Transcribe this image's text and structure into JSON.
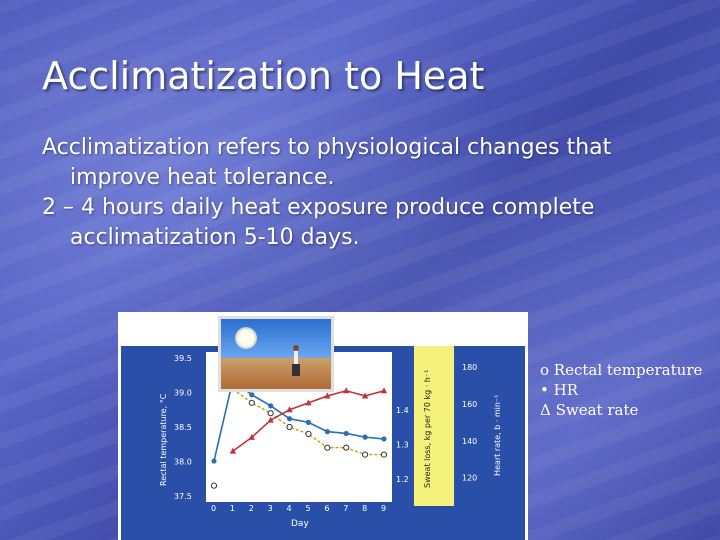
{
  "slide": {
    "title": "Acclimatization to Heat",
    "bullets": [
      "Acclimatization refers to physiological changes that improve heat tolerance.",
      "2 – 4 hours daily heat exposure produce complete acclimatization 5-10 days."
    ]
  },
  "legend": {
    "rectal": "o Rectal temperature",
    "hr": "• HR",
    "sweat": "Δ Sweat rate"
  },
  "chart_data": {
    "type": "line",
    "xlabel": "Day",
    "x": [
      0,
      1,
      2,
      3,
      4,
      5,
      6,
      7,
      8,
      9
    ],
    "x_ticks": [
      "0",
      "1",
      "2",
      "3",
      "4",
      "5",
      "6",
      "7",
      "8",
      "9"
    ],
    "axes": {
      "rectal": {
        "label": "Rectal temperature, °C",
        "range": [
          37.5,
          39.5
        ],
        "ticks": [
          "37.5",
          "38.0",
          "38.5",
          "39.0",
          "39.5"
        ]
      },
      "sweat": {
        "label": "Sweat loss, kg per 70 kg · h⁻¹",
        "range": [
          1.15,
          1.55
        ],
        "ticks": [
          "1.2",
          "1.3",
          "1.4"
        ]
      },
      "hr": {
        "label": "Heart rate, b · min⁻¹",
        "range": [
          110,
          185
        ],
        "ticks": [
          "120",
          "140",
          "160",
          "180"
        ]
      }
    },
    "series": [
      {
        "key": "rectal",
        "marker": "circle",
        "points": [
          [
            0,
            37.65
          ],
          [
            1,
            39.05
          ],
          [
            2,
            38.85
          ],
          [
            3,
            38.7
          ],
          [
            4,
            38.5
          ],
          [
            5,
            38.4
          ],
          [
            6,
            38.2
          ],
          [
            7,
            38.2
          ],
          [
            8,
            38.1
          ],
          [
            9,
            38.1
          ]
        ]
      },
      {
        "key": "hr",
        "marker": "dot",
        "points": [
          [
            0,
            129
          ],
          [
            1,
            173
          ],
          [
            2,
            165
          ],
          [
            3,
            159
          ],
          [
            4,
            152
          ],
          [
            5,
            150
          ],
          [
            6,
            145
          ],
          [
            7,
            144
          ],
          [
            8,
            142
          ],
          [
            9,
            141
          ]
        ]
      },
      {
        "key": "sweat",
        "marker": "triangle",
        "points": [
          [
            1,
            1.28
          ],
          [
            2,
            1.32
          ],
          [
            3,
            1.37
          ],
          [
            4,
            1.4
          ],
          [
            5,
            1.42
          ],
          [
            6,
            1.44
          ],
          [
            7,
            1.455
          ],
          [
            8,
            1.44
          ],
          [
            9,
            1.455
          ]
        ]
      }
    ],
    "colors": {
      "panel": "#2a4fa8",
      "yellow_band": "#f4f27a",
      "rectal": "#333333",
      "hr": "#2a6fb0",
      "sweat": "#c0343c",
      "text": "#ffffff"
    }
  }
}
